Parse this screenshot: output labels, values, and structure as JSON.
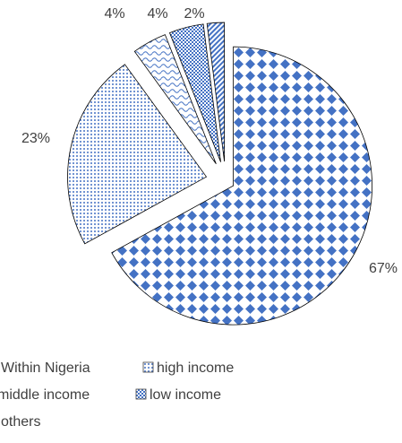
{
  "chart_data": {
    "type": "pie",
    "categories": [
      "Within Nigeria",
      "high income",
      "middle income",
      "low income",
      "others"
    ],
    "values": [
      67,
      23,
      4,
      4,
      2
    ],
    "value_labels": [
      "67%",
      "23%",
      "4%",
      "4%",
      "2%"
    ],
    "colors": [
      "#4472c4",
      "#4472c4",
      "#4472c4",
      "#4472c4",
      "#4472c4"
    ],
    "legend": "bottom"
  }
}
